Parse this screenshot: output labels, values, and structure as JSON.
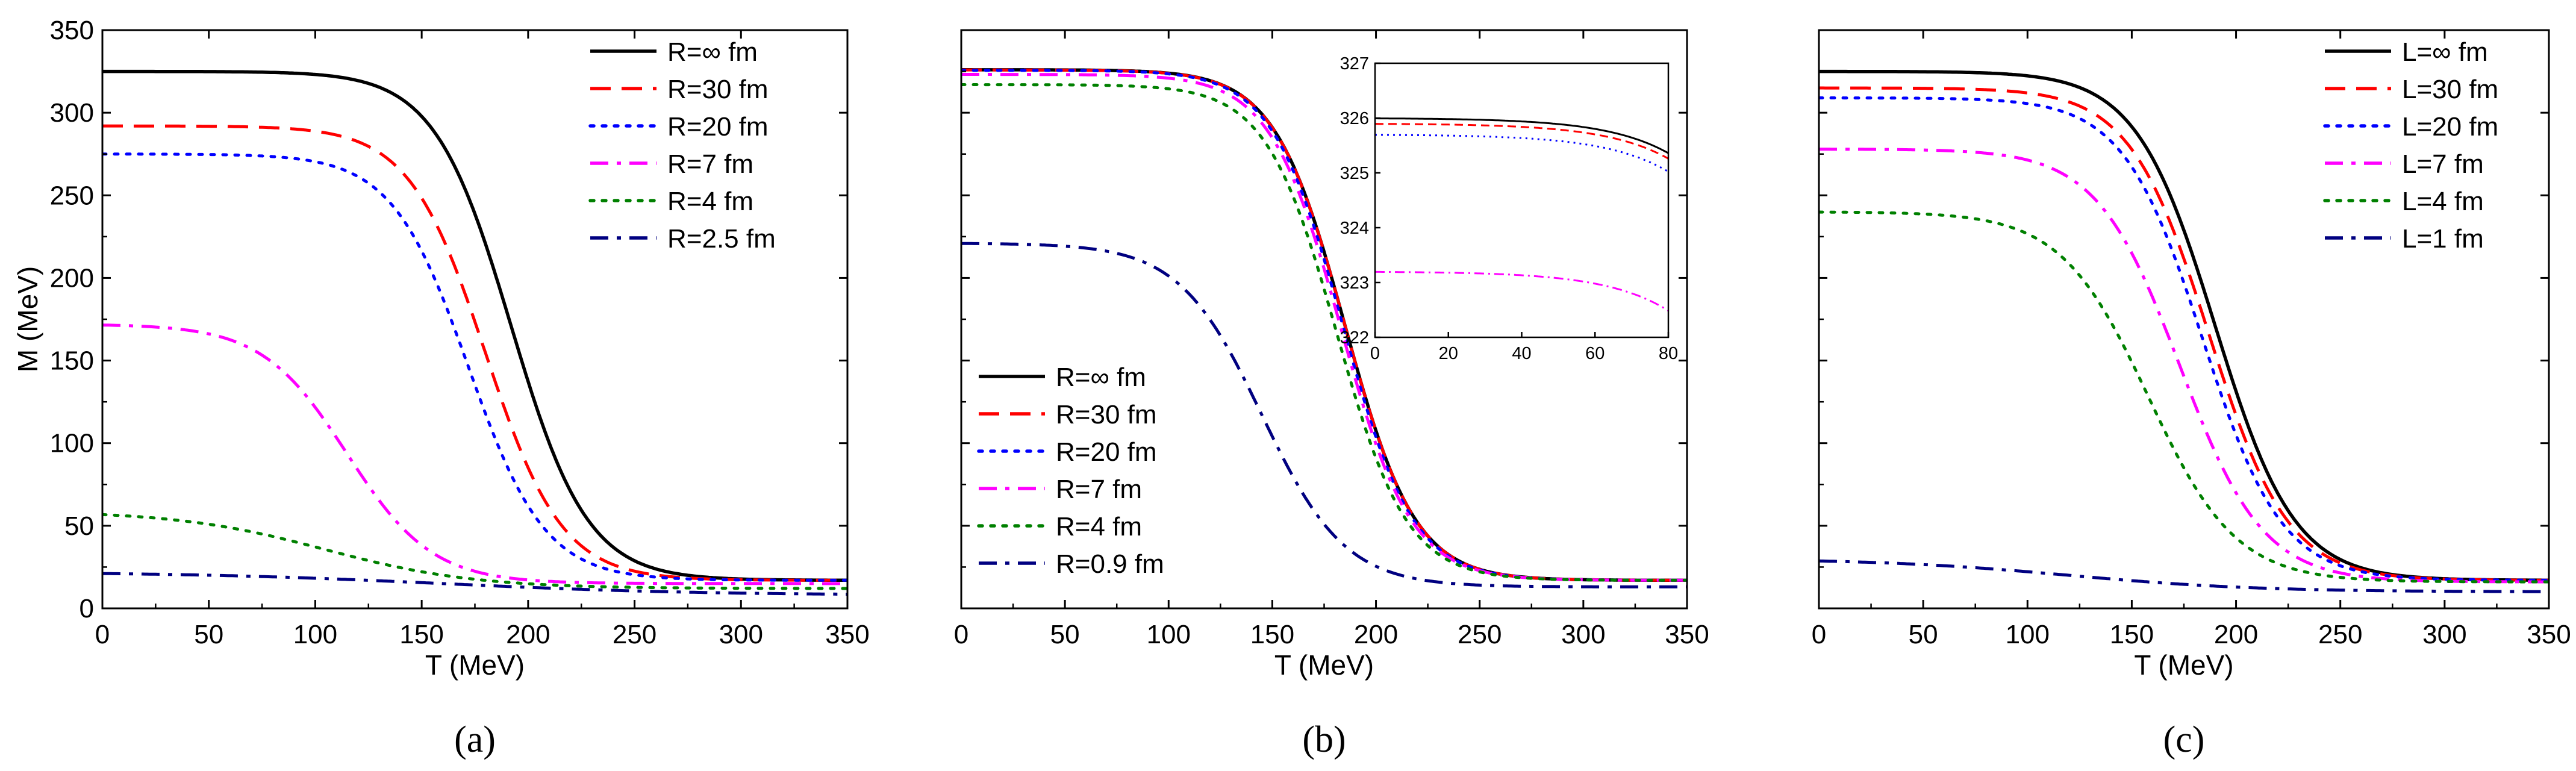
{
  "chart_data": [
    {
      "id": "a",
      "type": "line",
      "panel_label": "(a)",
      "xlabel": "T (MeV)",
      "ylabel": "M (MeV)",
      "xlim": [
        0,
        350
      ],
      "ylim": [
        0,
        350
      ],
      "x_ticks": [
        "0",
        "50",
        "100",
        "150",
        "200",
        "250",
        "300",
        "350"
      ],
      "y_ticks": [
        "0",
        "50",
        "100",
        "150",
        "200",
        "250",
        "300",
        "350"
      ],
      "show_y_tick_labels": true,
      "legend_position": "top-right",
      "series": [
        {
          "name": "R=∞ fm",
          "color": "#000000",
          "style": "solid",
          "M0": 325,
          "Tc": 192,
          "w": 18,
          "Mhot": 17
        },
        {
          "name": "R=30 fm",
          "color": "#ff0000",
          "style": "dash",
          "M0": 292,
          "Tc": 180,
          "w": 18,
          "Mhot": 17
        },
        {
          "name": "R=20 fm",
          "color": "#0000ff",
          "style": "dot",
          "M0": 275,
          "Tc": 172,
          "w": 18,
          "Mhot": 17
        },
        {
          "name": "R=7 fm",
          "color": "#ff00ff",
          "style": "dashdot",
          "M0": 172,
          "Tc": 115,
          "w": 20,
          "Mhot": 15
        },
        {
          "name": "R=4 fm",
          "color": "#008000",
          "style": "dot",
          "M0": 59,
          "Tc": 105,
          "w": 35,
          "Mhot": 12
        },
        {
          "name": "R=2.5 fm",
          "color": "#000080",
          "style": "dashdot",
          "M0": 22,
          "Tc": 160,
          "w": 60,
          "Mhot": 8
        }
      ]
    },
    {
      "id": "b",
      "type": "line",
      "panel_label": "(b)",
      "xlabel": "T (MeV)",
      "ylabel": "",
      "xlim": [
        0,
        350
      ],
      "ylim": [
        0,
        350
      ],
      "x_ticks": [
        "0",
        "50",
        "100",
        "150",
        "200",
        "250",
        "300",
        "350"
      ],
      "y_ticks": [],
      "show_y_tick_labels": false,
      "legend_position": "bottom-left",
      "series": [
        {
          "name": "R=∞ fm",
          "color": "#000000",
          "style": "solid",
          "M0": 326,
          "Tc": 185,
          "w": 17,
          "Mhot": 17
        },
        {
          "name": "R=30 fm",
          "color": "#ff0000",
          "style": "dash",
          "M0": 325.9,
          "Tc": 185,
          "w": 17,
          "Mhot": 17
        },
        {
          "name": "R=20 fm",
          "color": "#0000ff",
          "style": "dot",
          "M0": 325.7,
          "Tc": 184,
          "w": 17,
          "Mhot": 17
        },
        {
          "name": "R=7 fm",
          "color": "#ff00ff",
          "style": "dashdot",
          "M0": 323.2,
          "Tc": 183,
          "w": 17,
          "Mhot": 17
        },
        {
          "name": "R=4 fm",
          "color": "#008000",
          "style": "dot",
          "M0": 317,
          "Tc": 181,
          "w": 17,
          "Mhot": 17
        },
        {
          "name": "R=0.9 fm",
          "color": "#000080",
          "style": "dashdot",
          "M0": 221,
          "Tc": 145,
          "w": 20,
          "Mhot": 13
        }
      ],
      "inset": {
        "xlim": [
          0,
          80
        ],
        "ylim": [
          322,
          327
        ],
        "x_ticks": [
          "0",
          "20",
          "40",
          "60",
          "80"
        ],
        "y_ticks": [
          "322",
          "323",
          "324",
          "325",
          "326",
          "327"
        ]
      }
    },
    {
      "id": "c",
      "type": "line",
      "panel_label": "(c)",
      "xlabel": "T (MeV)",
      "ylabel": "",
      "xlim": [
        0,
        350
      ],
      "ylim": [
        0,
        350
      ],
      "x_ticks": [
        "0",
        "50",
        "100",
        "150",
        "200",
        "250",
        "300",
        "350"
      ],
      "y_ticks": [],
      "show_y_tick_labels": false,
      "legend_position": "top-right",
      "series": [
        {
          "name": "L=∞ fm",
          "color": "#000000",
          "style": "solid",
          "M0": 325,
          "Tc": 190,
          "w": 19,
          "Mhot": 17
        },
        {
          "name": "L=30 fm",
          "color": "#ff0000",
          "style": "dash",
          "M0": 315,
          "Tc": 187,
          "w": 19,
          "Mhot": 17
        },
        {
          "name": "L=20 fm",
          "color": "#0000ff",
          "style": "dot",
          "M0": 309,
          "Tc": 184,
          "w": 19,
          "Mhot": 17
        },
        {
          "name": "L=7 fm",
          "color": "#ff00ff",
          "style": "dashdot",
          "M0": 278,
          "Tc": 173,
          "w": 20,
          "Mhot": 16
        },
        {
          "name": "L=4 fm",
          "color": "#008000",
          "style": "dot",
          "M0": 240,
          "Tc": 158,
          "w": 21,
          "Mhot": 16
        },
        {
          "name": "L=1 fm",
          "color": "#000080",
          "style": "dashdot",
          "M0": 30,
          "Tc": 120,
          "w": 45,
          "Mhot": 10
        }
      ]
    }
  ]
}
